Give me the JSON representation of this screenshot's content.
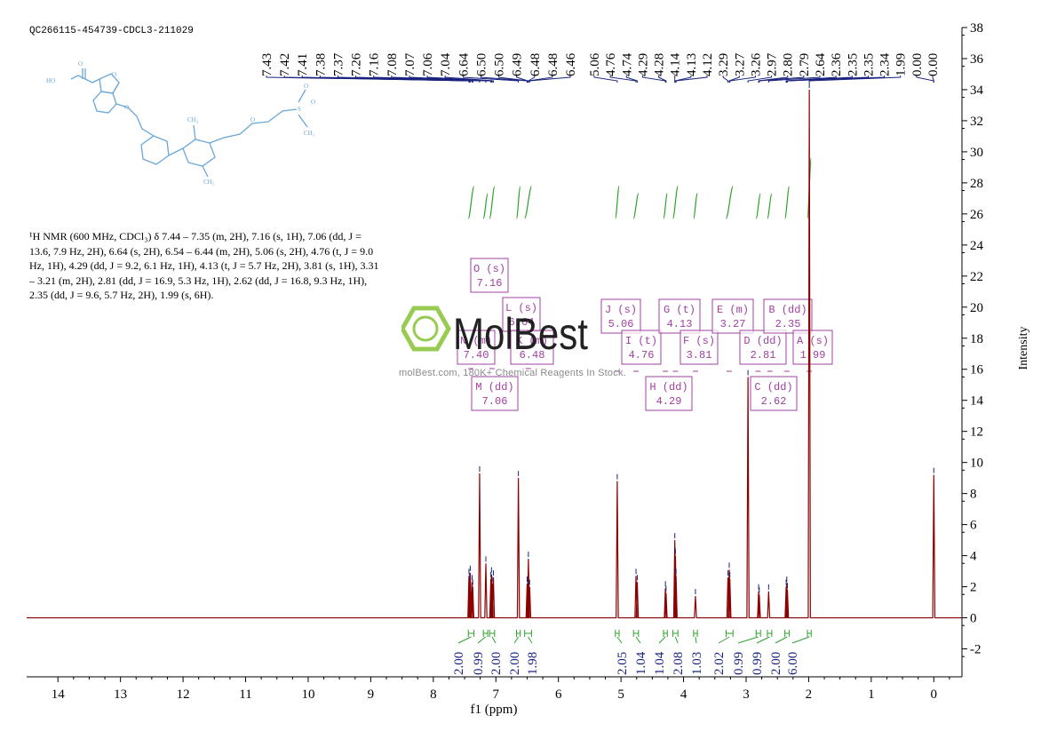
{
  "sample_id": "QC266115-454739-CDCL3-211029",
  "nmr_description": "¹H NMR (600 MHz, CDCl₃) δ 7.44 – 7.35 (m, 2H), 7.16 (s, 1H), 7.06 (dd, J = 13.6, 7.9 Hz, 2H), 6.64 (s, 2H), 6.54 – 6.44 (m, 2H), 5.06 (s, 2H), 4.76 (t, J = 9.0 Hz, 1H), 4.29 (dd, J = 9.2, 6.1 Hz, 1H), 4.13 (t, J = 5.7 Hz, 2H), 3.81 (s, 1H), 3.31 – 3.21 (m, 2H), 2.81 (dd, J = 16.9, 5.3 Hz, 1H), 2.62 (dd, J = 16.8, 9.3 Hz, 1H), 2.35 (dd, J = 9.6, 5.7 Hz, 2H), 1.99 (s, 6H).",
  "watermark": {
    "brand": "MolBest",
    "tagline": "molBest.com, 180K+ Chemical Reagents In Stock."
  },
  "structure_labels": {
    "acid_o": "O",
    "acid_oh": "HO",
    "so2_o": "O",
    "so2_s": "S",
    "so2_o2": "O",
    "me_top": "CH₃",
    "me_bottom": "CH₃",
    "me_s": "CH₃"
  },
  "colors": {
    "spectrum": "#8b0000",
    "integral": "#2ca02c",
    "label_box": "#a040a0",
    "peak_label_line": "#1a237e",
    "structure": "#6aa7d8",
    "logo": "#8dc63f"
  },
  "chart_data": {
    "type": "line",
    "xlabel": "f1 (ppm)",
    "ylabel": "Intensity",
    "xlim": [
      14.5,
      -0.45
    ],
    "ylim": [
      -3.8,
      38
    ],
    "x_axis_reversed": true,
    "x_ticks": [
      14,
      13,
      12,
      11,
      10,
      9,
      8,
      7,
      6,
      5,
      4,
      3,
      2,
      1,
      0
    ],
    "y_ticks": [
      -2,
      0,
      2,
      4,
      6,
      8,
      10,
      12,
      14,
      16,
      18,
      20,
      22,
      24,
      26,
      28,
      30,
      32,
      34,
      36,
      38
    ],
    "peaks": [
      {
        "ppm": 7.43,
        "height": 2.7
      },
      {
        "ppm": 7.42,
        "height": 2.4
      },
      {
        "ppm": 7.41,
        "height": 2.9
      },
      {
        "ppm": 7.38,
        "height": 2.3
      },
      {
        "ppm": 7.37,
        "height": 2.0
      },
      {
        "ppm": 7.26,
        "height": 9.3
      },
      {
        "ppm": 7.16,
        "height": 3.5
      },
      {
        "ppm": 7.08,
        "height": 2.5
      },
      {
        "ppm": 7.07,
        "height": 2.8
      },
      {
        "ppm": 7.06,
        "height": 2.2
      },
      {
        "ppm": 7.04,
        "height": 2.6
      },
      {
        "ppm": 6.64,
        "height": 9.0
      },
      {
        "ppm": 6.5,
        "height": 2.2
      },
      {
        "ppm": 6.49,
        "height": 2.0
      },
      {
        "ppm": 6.48,
        "height": 3.8
      },
      {
        "ppm": 6.46,
        "height": 2.0
      },
      {
        "ppm": 5.06,
        "height": 8.8
      },
      {
        "ppm": 4.76,
        "height": 2.7
      },
      {
        "ppm": 4.74,
        "height": 2.3
      },
      {
        "ppm": 4.29,
        "height": 1.9
      },
      {
        "ppm": 4.28,
        "height": 1.6
      },
      {
        "ppm": 4.14,
        "height": 5.0
      },
      {
        "ppm": 4.13,
        "height": 4.0
      },
      {
        "ppm": 4.12,
        "height": 2.7
      },
      {
        "ppm": 3.81,
        "height": 1.4
      },
      {
        "ppm": 3.29,
        "height": 2.6
      },
      {
        "ppm": 3.27,
        "height": 3.1
      },
      {
        "ppm": 3.26,
        "height": 2.5
      },
      {
        "ppm": 2.97,
        "height": 15.5
      },
      {
        "ppm": 2.8,
        "height": 1.7
      },
      {
        "ppm": 2.79,
        "height": 1.5
      },
      {
        "ppm": 2.64,
        "height": 1.7
      },
      {
        "ppm": 2.36,
        "height": 2.0
      },
      {
        "ppm": 2.35,
        "height": 2.2
      },
      {
        "ppm": 2.34,
        "height": 1.8
      },
      {
        "ppm": 1.99,
        "height": 34.0
      },
      {
        "ppm": 0.0,
        "height": 9.2
      }
    ],
    "peak_labels_group1": [
      "7.43",
      "7.42",
      "7.41",
      "7.38",
      "7.37",
      "7.26",
      "7.16",
      "7.08",
      "7.07",
      "7.06",
      "7.04",
      "6.64",
      "6.50",
      "6.50",
      "6.49",
      "6.48",
      "6.48",
      "6.46"
    ],
    "peak_labels_group2": [
      "5.06",
      "4.76",
      "4.74",
      "4.29",
      "4.28",
      "4.14",
      "4.13",
      "4.12",
      "3.29",
      "3.27",
      "3.26",
      "2.97",
      "2.80",
      "2.79",
      "2.64",
      "2.36",
      "2.35",
      "2.35",
      "2.34",
      "1.99",
      "0.00",
      "0.00"
    ],
    "integrals": [
      {
        "from": 7.44,
        "to": 7.35,
        "value": "2.00"
      },
      {
        "from": 7.2,
        "to": 7.13,
        "value": "0.99"
      },
      {
        "from": 7.1,
        "to": 7.02,
        "value": "2.00"
      },
      {
        "from": 6.67,
        "to": 6.61,
        "value": "2.00"
      },
      {
        "from": 6.54,
        "to": 6.43,
        "value": "1.98"
      },
      {
        "from": 5.09,
        "to": 5.03,
        "value": "2.05"
      },
      {
        "from": 4.8,
        "to": 4.72,
        "value": "1.04"
      },
      {
        "from": 4.32,
        "to": 4.26,
        "value": "1.04"
      },
      {
        "from": 4.17,
        "to": 4.09,
        "value": "2.08"
      },
      {
        "from": 3.84,
        "to": 3.78,
        "value": "1.03"
      },
      {
        "from": 3.32,
        "to": 3.21,
        "value": "2.02"
      },
      {
        "from": 2.84,
        "to": 2.77,
        "value": "0.99"
      },
      {
        "from": 2.66,
        "to": 2.59,
        "value": "0.99"
      },
      {
        "from": 2.38,
        "to": 2.31,
        "value": "2.00"
      },
      {
        "from": 2.02,
        "to": 1.96,
        "value": "6.00"
      }
    ],
    "multiplets": [
      {
        "letter": "O",
        "mult": "s",
        "shift": "7.16"
      },
      {
        "letter": "L",
        "mult": "s",
        "shift": "6.64"
      },
      {
        "letter": "N",
        "mult": "m",
        "shift": "7.40"
      },
      {
        "letter": "K",
        "mult": "m",
        "shift": "6.48"
      },
      {
        "letter": "M",
        "mult": "dd",
        "shift": "7.06"
      },
      {
        "letter": "J",
        "mult": "s",
        "shift": "5.06"
      },
      {
        "letter": "I",
        "mult": "t",
        "shift": "4.76"
      },
      {
        "letter": "H",
        "mult": "dd",
        "shift": "4.29"
      },
      {
        "letter": "G",
        "mult": "t",
        "shift": "4.13"
      },
      {
        "letter": "F",
        "mult": "s",
        "shift": "3.81"
      },
      {
        "letter": "E",
        "mult": "m",
        "shift": "3.27"
      },
      {
        "letter": "D",
        "mult": "dd",
        "shift": "2.81"
      },
      {
        "letter": "C",
        "mult": "dd",
        "shift": "2.62"
      },
      {
        "letter": "B",
        "mult": "dd",
        "shift": "2.35"
      },
      {
        "letter": "A",
        "mult": "s",
        "shift": "1.99"
      }
    ]
  }
}
